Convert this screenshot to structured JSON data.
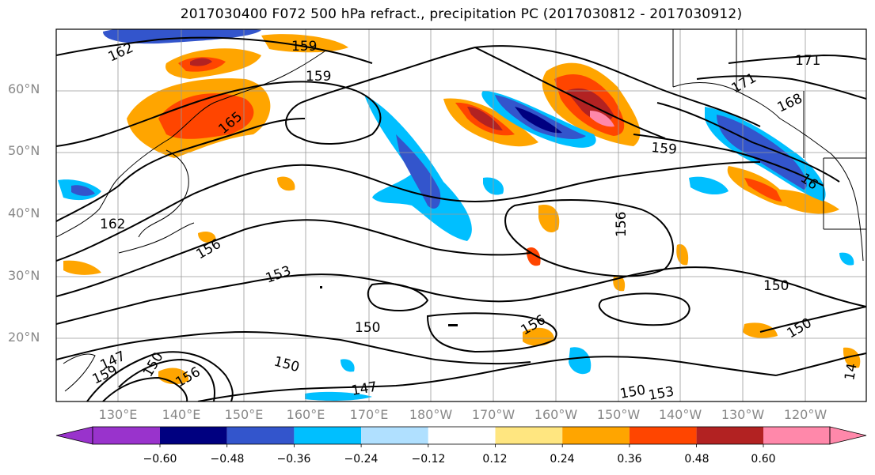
{
  "figure": {
    "title": "2017030400 F072 500 hPa refract., precipitation PC (2017030812 - 2017030912)"
  },
  "axes": {
    "lat_labels": [
      "60°N",
      "50°N",
      "40°N",
      "30°N",
      "20°N"
    ],
    "lon_labels": [
      "130°E",
      "140°E",
      "150°E",
      "160°E",
      "170°E",
      "180°W",
      "170°W",
      "160°W",
      "150°W",
      "140°W",
      "130°W",
      "120°W"
    ]
  },
  "contour_labels": [
    "162",
    "159",
    "159",
    "165",
    "162",
    "156",
    "153",
    "150",
    "150",
    "147",
    "147",
    "159",
    "150",
    "156",
    "156",
    "156",
    "159",
    "171",
    "171",
    "168",
    "16",
    "150",
    "150",
    "150",
    "153",
    "14"
  ],
  "colorbar": {
    "tick_labels": [
      "−0.60",
      "−0.48",
      "−0.36",
      "−0.24",
      "−0.12",
      "0.12",
      "0.24",
      "0.36",
      "0.48",
      "0.60"
    ],
    "colors": [
      "#9933cc",
      "#000080",
      "#3355cc",
      "#00bfff",
      "#b0e0ff",
      "#ffffff",
      "#ffe680",
      "#ffa500",
      "#ff4500",
      "#b22222",
      "#ff88aa"
    ]
  }
}
